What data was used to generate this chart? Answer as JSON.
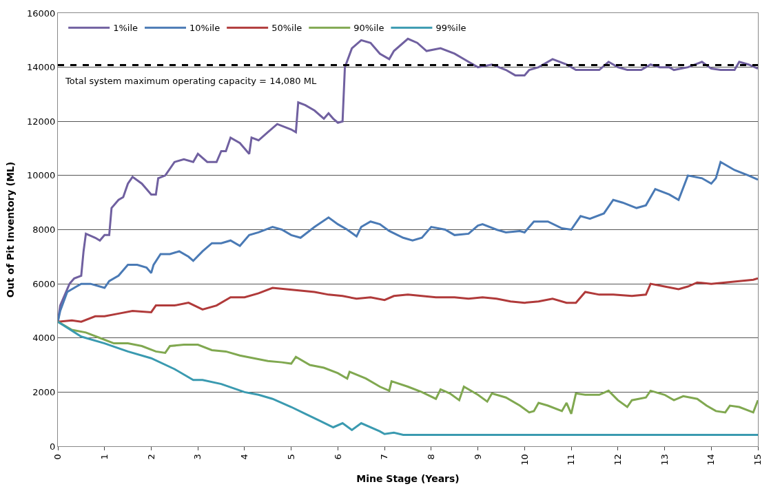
{
  "chart_data": {
    "type": "line",
    "xlabel": "Mine Stage (Years)",
    "ylabel": "Out of Pit Inventory (ML)",
    "xlim": [
      0,
      15
    ],
    "xticks": [
      0,
      1,
      2,
      3,
      4,
      5,
      6,
      7,
      8,
      9,
      10,
      11,
      12,
      13,
      14,
      15
    ],
    "ylim": [
      0,
      16000
    ],
    "yticks": [
      0,
      2000,
      4000,
      6000,
      8000,
      10000,
      12000,
      14000,
      16000
    ],
    "grid": "y",
    "legend": "top left",
    "line_style": "solid",
    "marker": "none",
    "ref_lines": [
      {
        "axis": "y",
        "value": 14080,
        "label": "Total system maximum operating capacity = 14,080 ML",
        "color": "#000000",
        "line_style": "dashed"
      }
    ],
    "series": [
      {
        "name": "1%ile",
        "color": "#7060a0",
        "x": [
          0,
          0.05,
          0.15,
          0.25,
          0.35,
          0.5,
          0.55,
          0.6,
          0.8,
          0.9,
          1.0,
          1.1,
          1.15,
          1.3,
          1.4,
          1.5,
          1.6,
          1.8,
          2.0,
          2.1,
          2.15,
          2.3,
          2.5,
          2.7,
          2.9,
          3.0,
          3.2,
          3.4,
          3.5,
          3.6,
          3.7,
          3.9,
          4.1,
          4.15,
          4.3,
          4.5,
          4.7,
          5.0,
          5.1,
          5.15,
          5.3,
          5.5,
          5.7,
          5.8,
          5.9,
          6.0,
          6.1,
          6.15,
          6.3,
          6.5,
          6.7,
          6.9,
          7.1,
          7.2,
          7.5,
          7.7,
          7.9,
          8.2,
          8.5,
          8.8,
          9.0,
          9.3,
          9.6,
          9.8,
          10.0,
          10.1,
          10.3,
          10.6,
          10.9,
          11.1,
          11.3,
          11.6,
          11.8,
          12.0,
          12.2,
          12.5,
          12.7,
          12.9,
          13.1,
          13.2,
          13.5,
          13.8,
          14.0,
          14.2,
          14.5,
          14.6,
          14.8,
          15.0
        ],
        "values": [
          4600,
          5200,
          5600,
          6000,
          6200,
          6300,
          7200,
          7850,
          7700,
          7600,
          7800,
          7800,
          8800,
          9100,
          9200,
          9700,
          9950,
          9700,
          9300,
          9300,
          9900,
          10000,
          10500,
          10600,
          10500,
          10800,
          10500,
          10500,
          10900,
          10900,
          11400,
          11200,
          10800,
          11400,
          11300,
          11600,
          11900,
          11700,
          11600,
          12700,
          12600,
          12400,
          12100,
          12300,
          12100,
          11950,
          12000,
          14000,
          14700,
          15000,
          14900,
          14500,
          14300,
          14600,
          15050,
          14900,
          14600,
          14700,
          14500,
          14200,
          14000,
          14100,
          13900,
          13700,
          13700,
          13900,
          14000,
          14300,
          14100,
          13900,
          13900,
          13900,
          14200,
          14000,
          13900,
          13900,
          14100,
          14000,
          14000,
          13900,
          14000,
          14200,
          13950,
          13900,
          13900,
          14200,
          14100,
          13950
        ]
      },
      {
        "name": "10%ile",
        "color": "#4a7ab5",
        "x": [
          0,
          0.05,
          0.2,
          0.4,
          0.5,
          0.7,
          0.9,
          1.0,
          1.1,
          1.3,
          1.5,
          1.7,
          1.9,
          2.0,
          2.05,
          2.2,
          2.4,
          2.6,
          2.8,
          2.9,
          3.1,
          3.3,
          3.5,
          3.7,
          3.9,
          4.1,
          4.3,
          4.6,
          4.8,
          5.0,
          5.2,
          5.5,
          5.8,
          6.0,
          6.2,
          6.4,
          6.5,
          6.7,
          6.9,
          7.1,
          7.4,
          7.6,
          7.8,
          8.0,
          8.3,
          8.5,
          8.8,
          9.0,
          9.1,
          9.4,
          9.6,
          9.9,
          10.0,
          10.2,
          10.5,
          10.8,
          11.0,
          11.2,
          11.4,
          11.7,
          11.9,
          12.1,
          12.4,
          12.6,
          12.8,
          13.1,
          13.3,
          13.5,
          13.8,
          14.0,
          14.1,
          14.2,
          14.5,
          14.8,
          15.0
        ],
        "values": [
          4600,
          5000,
          5700,
          5900,
          6000,
          6000,
          5900,
          5850,
          6100,
          6300,
          6700,
          6700,
          6600,
          6400,
          6700,
          7100,
          7100,
          7200,
          7000,
          6850,
          7200,
          7500,
          7500,
          7600,
          7400,
          7800,
          7900,
          8100,
          8000,
          7800,
          7700,
          8100,
          8450,
          8200,
          8000,
          7750,
          8100,
          8300,
          8200,
          7950,
          7700,
          7600,
          7700,
          8100,
          8000,
          7800,
          7850,
          8150,
          8200,
          8000,
          7900,
          7950,
          7900,
          8300,
          8300,
          8050,
          8000,
          8500,
          8400,
          8600,
          9100,
          9000,
          8800,
          8900,
          9500,
          9300,
          9100,
          10000,
          9900,
          9700,
          9900,
          10500,
          10200,
          10000,
          9850
        ]
      },
      {
        "name": "50%ile",
        "color": "#b03a3a",
        "x": [
          0,
          0.3,
          0.5,
          0.8,
          1.0,
          1.3,
          1.6,
          2.0,
          2.1,
          2.5,
          2.8,
          3.1,
          3.4,
          3.7,
          4.0,
          4.3,
          4.6,
          4.9,
          5.2,
          5.5,
          5.8,
          6.1,
          6.4,
          6.7,
          7.0,
          7.2,
          7.5,
          7.8,
          8.1,
          8.5,
          8.8,
          9.1,
          9.4,
          9.7,
          10.0,
          10.3,
          10.6,
          10.9,
          11.1,
          11.3,
          11.6,
          11.9,
          12.3,
          12.6,
          12.7,
          13.0,
          13.3,
          13.5,
          13.7,
          14.0,
          14.3,
          14.6,
          14.9,
          15.0
        ],
        "values": [
          4600,
          4650,
          4600,
          4800,
          4800,
          4900,
          5000,
          4950,
          5200,
          5200,
          5300,
          5050,
          5200,
          5500,
          5500,
          5650,
          5850,
          5800,
          5750,
          5700,
          5600,
          5550,
          5450,
          5500,
          5400,
          5550,
          5600,
          5550,
          5500,
          5500,
          5450,
          5500,
          5450,
          5350,
          5300,
          5350,
          5450,
          5300,
          5300,
          5700,
          5600,
          5600,
          5550,
          5600,
          6000,
          5900,
          5800,
          5900,
          6050,
          6000,
          6050,
          6100,
          6150,
          6200
        ]
      },
      {
        "name": "90%ile",
        "color": "#80a850",
        "x": [
          0,
          0.3,
          0.6,
          0.9,
          1.2,
          1.5,
          1.8,
          2.1,
          2.3,
          2.4,
          2.7,
          3.0,
          3.3,
          3.6,
          3.9,
          4.2,
          4.5,
          4.8,
          5.0,
          5.1,
          5.4,
          5.7,
          6.0,
          6.2,
          6.25,
          6.6,
          6.9,
          7.1,
          7.15,
          7.5,
          7.8,
          8.1,
          8.2,
          8.4,
          8.6,
          8.7,
          9.0,
          9.2,
          9.3,
          9.6,
          9.9,
          10.1,
          10.2,
          10.3,
          10.5,
          10.8,
          10.9,
          11.0,
          11.1,
          11.3,
          11.6,
          11.8,
          12.0,
          12.2,
          12.3,
          12.6,
          12.7,
          13.0,
          13.2,
          13.4,
          13.7,
          13.9,
          14.1,
          14.3,
          14.4,
          14.6,
          14.9,
          15.0
        ],
        "values": [
          4600,
          4300,
          4200,
          4000,
          3800,
          3800,
          3700,
          3500,
          3450,
          3700,
          3750,
          3750,
          3550,
          3500,
          3350,
          3250,
          3150,
          3100,
          3050,
          3300,
          3000,
          2900,
          2700,
          2500,
          2750,
          2500,
          2200,
          2050,
          2400,
          2200,
          2000,
          1750,
          2100,
          1950,
          1700,
          2200,
          1900,
          1650,
          1950,
          1800,
          1500,
          1250,
          1300,
          1600,
          1500,
          1300,
          1600,
          1200,
          1950,
          1900,
          1900,
          2050,
          1700,
          1450,
          1700,
          1800,
          2050,
          1900,
          1700,
          1850,
          1750,
          1500,
          1300,
          1250,
          1500,
          1450,
          1250,
          1700
        ]
      },
      {
        "name": "99%ile",
        "color": "#3a9ab0",
        "x": [
          0,
          0.5,
          1.0,
          1.5,
          2.0,
          2.5,
          2.9,
          3.1,
          3.5,
          4.0,
          4.3,
          4.6,
          5.0,
          5.3,
          5.6,
          5.9,
          6.1,
          6.3,
          6.5,
          6.9,
          7.0,
          7.2,
          7.4,
          8,
          15
        ],
        "values": [
          4600,
          4050,
          3800,
          3500,
          3250,
          2850,
          2450,
          2450,
          2300,
          2000,
          1900,
          1750,
          1450,
          1200,
          950,
          700,
          850,
          600,
          850,
          550,
          450,
          500,
          420,
          420,
          420
        ]
      }
    ]
  }
}
